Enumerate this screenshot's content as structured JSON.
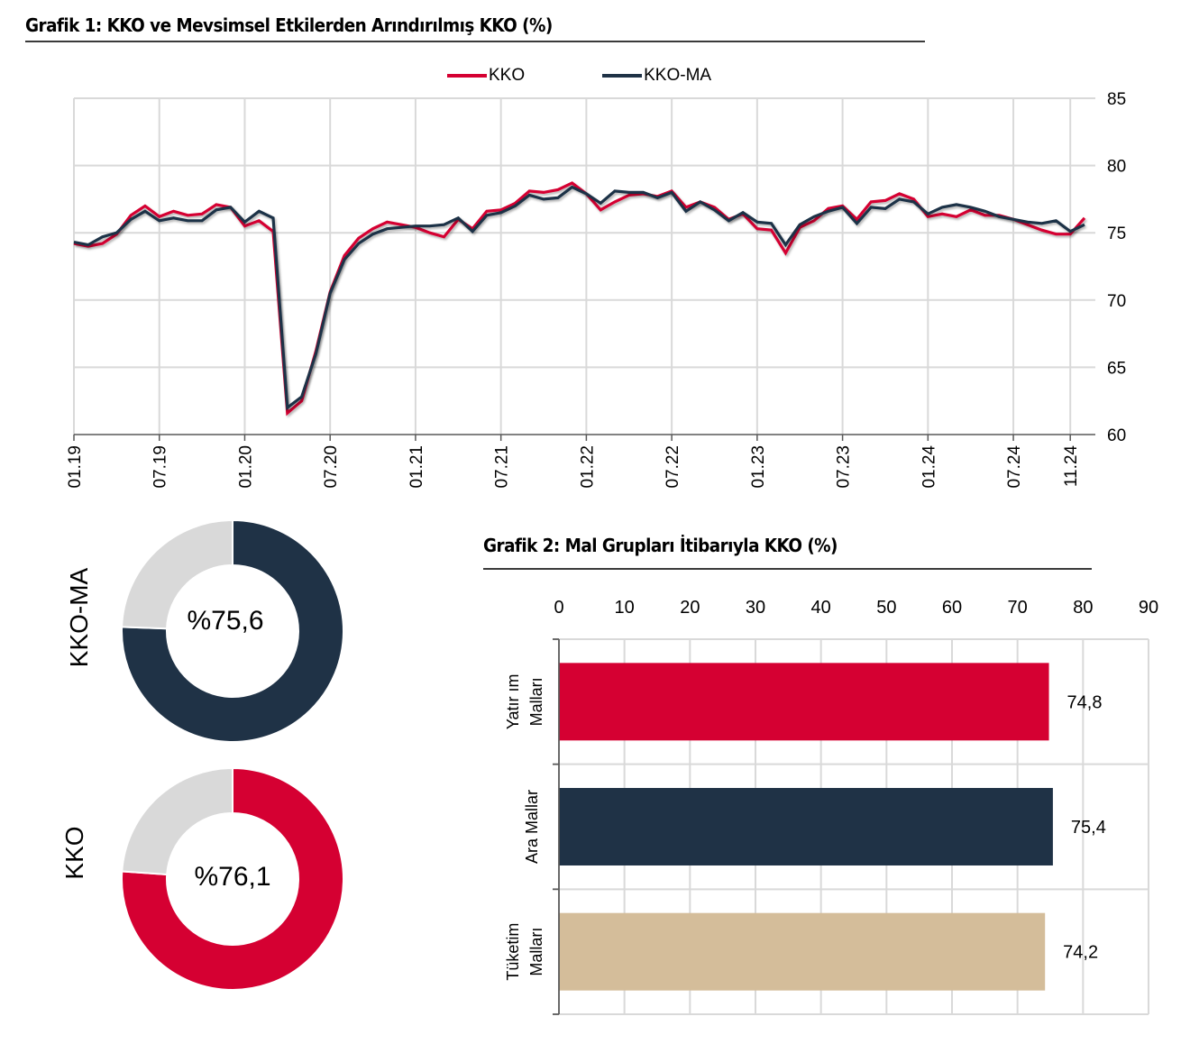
{
  "chart_data": [
    {
      "type": "line",
      "title": "Grafik 1: KKO ve Mevsimsel Etkilerden Arındırılmış KKO (%)",
      "xlabel": "",
      "ylabel": "",
      "ylim": [
        60,
        85
      ],
      "yticks": [
        "85",
        "80",
        "75",
        "70",
        "65",
        "60"
      ],
      "y_axis_side": "right",
      "grid": true,
      "legend_position": "top-center",
      "x_tick_labels": [
        "01.19",
        "07.19",
        "01.20",
        "07.20",
        "01.21",
        "07.21",
        "01.22",
        "07.22",
        "01.23",
        "07.23",
        "01.24",
        "07.24",
        "11.24"
      ],
      "x_tick_month_index": [
        0,
        6,
        12,
        18,
        24,
        30,
        36,
        42,
        48,
        54,
        60,
        66,
        70
      ],
      "x_start": "2019-01",
      "x_end": "2024-11",
      "series": [
        {
          "name": "KKO",
          "color": "#d50032",
          "values": [
            74.2,
            74.0,
            74.2,
            74.9,
            76.3,
            77.0,
            76.2,
            76.6,
            76.3,
            76.4,
            77.1,
            76.9,
            75.5,
            75.9,
            75.1,
            61.6,
            62.5,
            66.2,
            70.6,
            73.3,
            74.6,
            75.3,
            75.8,
            75.6,
            75.4,
            75.0,
            74.7,
            76.0,
            75.3,
            76.6,
            76.7,
            77.2,
            78.1,
            78.0,
            78.2,
            78.7,
            77.9,
            76.7,
            77.3,
            77.8,
            77.9,
            77.7,
            78.1,
            76.9,
            77.3,
            76.9,
            76.0,
            76.4,
            75.3,
            75.2,
            73.5,
            75.4,
            75.9,
            76.8,
            77.0,
            76.0,
            77.3,
            77.4,
            77.9,
            77.5,
            76.2,
            76.4,
            76.2,
            76.7,
            76.3,
            76.3,
            76.0,
            75.6,
            75.2,
            74.9,
            74.9,
            76.1
          ]
        },
        {
          "name": "KKO-MA",
          "color": "#1f3246",
          "values": [
            74.3,
            74.1,
            74.7,
            75.0,
            76.0,
            76.6,
            75.9,
            76.1,
            75.9,
            75.9,
            76.7,
            76.9,
            75.8,
            76.6,
            76.1,
            62.0,
            62.8,
            66.0,
            70.5,
            73.0,
            74.2,
            74.9,
            75.3,
            75.4,
            75.5,
            75.5,
            75.6,
            76.1,
            75.1,
            76.3,
            76.5,
            77.0,
            77.8,
            77.5,
            77.6,
            78.4,
            77.9,
            77.2,
            78.1,
            78.0,
            78.0,
            77.6,
            78.0,
            76.6,
            77.3,
            76.7,
            75.9,
            76.5,
            75.8,
            75.7,
            74.1,
            75.6,
            76.2,
            76.6,
            76.9,
            75.7,
            76.9,
            76.8,
            77.5,
            77.3,
            76.4,
            76.9,
            77.1,
            76.9,
            76.6,
            76.2,
            76.0,
            75.8,
            75.7,
            75.9,
            75.1,
            75.6
          ]
        }
      ]
    },
    {
      "type": "pie",
      "subtype": "donut",
      "title": "",
      "label": "KKO-MA",
      "value_label": "%75,6",
      "value": 75.6,
      "total": 100,
      "color": "#1f3246",
      "rest_color": "#d9d9d9"
    },
    {
      "type": "pie",
      "subtype": "donut",
      "title": "",
      "label": "KKO",
      "value_label": "%76,1",
      "value": 76.1,
      "total": 100,
      "color": "#d50032",
      "rest_color": "#d9d9d9"
    },
    {
      "type": "bar",
      "orientation": "horizontal",
      "title": "Grafik 2: Mal Grupları İtibarıyla KKO (%)",
      "xlabel": "",
      "ylabel": "",
      "xlim": [
        0,
        90
      ],
      "xticks": [
        "0",
        "10",
        "20",
        "30",
        "40",
        "50",
        "60",
        "70",
        "80",
        "90"
      ],
      "x_axis_side": "top",
      "grid": true,
      "categories": [
        "Yatırım Malları",
        "Ara Mallar",
        "Tüketim Malları"
      ],
      "category_lines": [
        [
          "Yatır ım",
          "Malları"
        ],
        [
          "Ara Mallar"
        ],
        [
          "Tüketim",
          "Malları"
        ]
      ],
      "values": [
        74.8,
        75.4,
        74.2
      ],
      "value_labels": [
        "74,8",
        "75,4",
        "74,2"
      ],
      "colors": [
        "#d50032",
        "#1f3246",
        "#d4bd9a"
      ]
    }
  ]
}
